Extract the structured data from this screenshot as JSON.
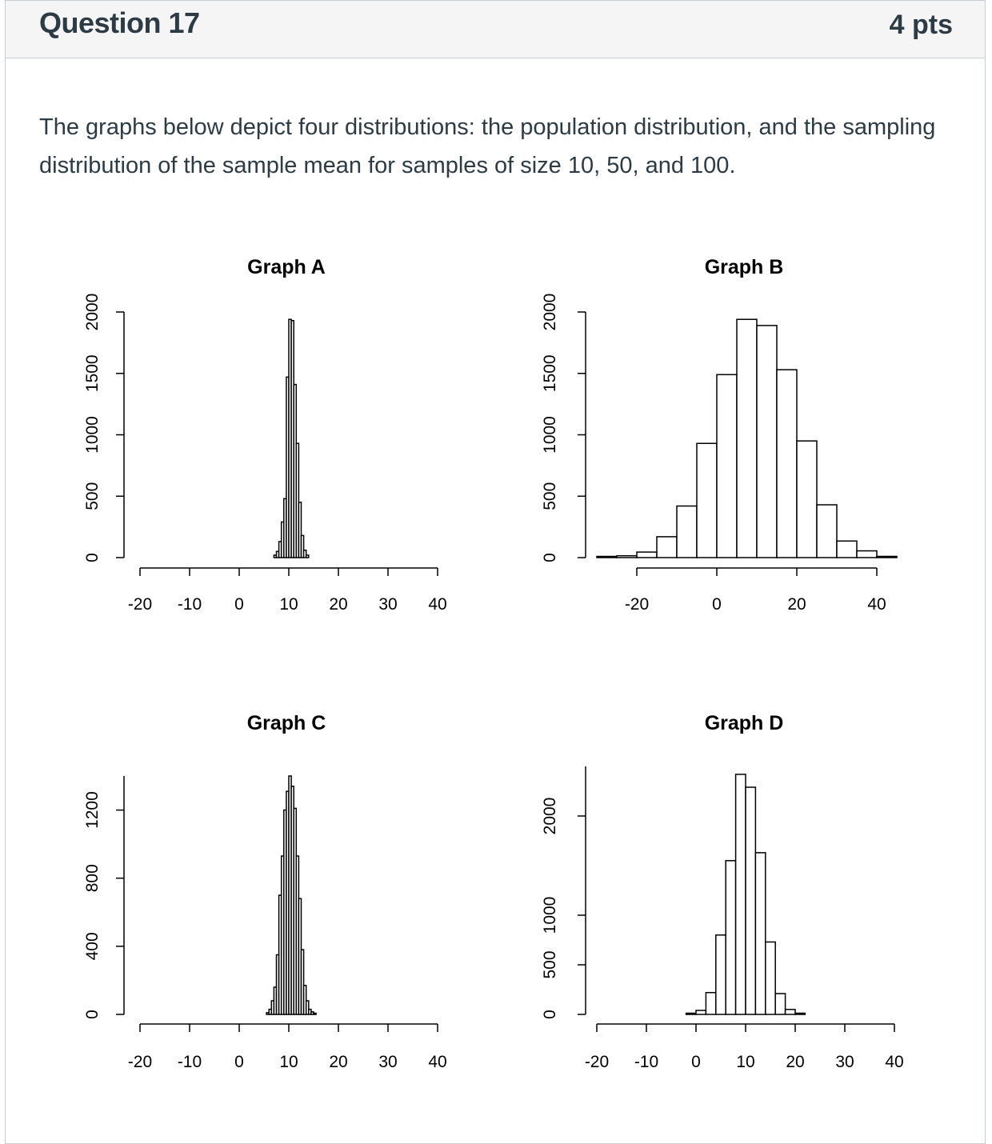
{
  "question": {
    "title": "Question 17",
    "points": "4 pts",
    "text": "The graphs below depict four distributions: the population distribution, and the sampling distribution of the sample mean for samples of size 10, 50, and 100."
  },
  "chart_data": [
    {
      "type": "bar",
      "title": "Graph A",
      "xlabel": "",
      "ylabel": "",
      "xticks": [
        -20,
        -10,
        0,
        10,
        20,
        30,
        40
      ],
      "xlim": [
        -20,
        40
      ],
      "yticks": [
        0,
        500,
        1000,
        1500,
        2000
      ],
      "ylim": [
        0,
        2000
      ],
      "bins": [
        {
          "x0": 7.0,
          "x1": 7.5,
          "y": 20
        },
        {
          "x0": 7.5,
          "x1": 8.0,
          "y": 50
        },
        {
          "x0": 8.0,
          "x1": 8.5,
          "y": 130
        },
        {
          "x0": 8.5,
          "x1": 9.0,
          "y": 290
        },
        {
          "x0": 9.0,
          "x1": 9.5,
          "y": 480
        },
        {
          "x0": 9.5,
          "x1": 10.0,
          "y": 1470
        },
        {
          "x0": 10.0,
          "x1": 10.5,
          "y": 1940
        },
        {
          "x0": 10.5,
          "x1": 11.0,
          "y": 1930
        },
        {
          "x0": 11.0,
          "x1": 11.5,
          "y": 1410
        },
        {
          "x0": 11.5,
          "x1": 12.0,
          "y": 930
        },
        {
          "x0": 12.0,
          "x1": 12.5,
          "y": 450
        },
        {
          "x0": 12.5,
          "x1": 13.0,
          "y": 180
        },
        {
          "x0": 13.0,
          "x1": 13.5,
          "y": 60
        },
        {
          "x0": 13.5,
          "x1": 14.0,
          "y": 20
        }
      ]
    },
    {
      "type": "bar",
      "title": "Graph B",
      "xlabel": "",
      "ylabel": "",
      "xticks": [
        -20,
        0,
        20,
        40
      ],
      "xlim": [
        -20,
        40
      ],
      "yticks": [
        0,
        500,
        1000,
        1500,
        2000
      ],
      "ylim": [
        0,
        2000
      ],
      "bins": [
        {
          "x0": -30,
          "x1": -25,
          "y": 5
        },
        {
          "x0": -25,
          "x1": -20,
          "y": 15
        },
        {
          "x0": -20,
          "x1": -15,
          "y": 45
        },
        {
          "x0": -15,
          "x1": -10,
          "y": 170
        },
        {
          "x0": -10,
          "x1": -5,
          "y": 420
        },
        {
          "x0": -5,
          "x1": 0,
          "y": 930
        },
        {
          "x0": 0,
          "x1": 5,
          "y": 1490
        },
        {
          "x0": 5,
          "x1": 10,
          "y": 1940
        },
        {
          "x0": 10,
          "x1": 15,
          "y": 1890
        },
        {
          "x0": 15,
          "x1": 20,
          "y": 1530
        },
        {
          "x0": 20,
          "x1": 25,
          "y": 950
        },
        {
          "x0": 25,
          "x1": 30,
          "y": 430
        },
        {
          "x0": 30,
          "x1": 35,
          "y": 135
        },
        {
          "x0": 35,
          "x1": 40,
          "y": 55
        },
        {
          "x0": 40,
          "x1": 45,
          "y": 10
        }
      ]
    },
    {
      "type": "bar",
      "title": "Graph C",
      "xlabel": "",
      "ylabel": "",
      "xticks": [
        -20,
        -10,
        0,
        10,
        20,
        30,
        40
      ],
      "xlim": [
        -20,
        40
      ],
      "yticks": [
        0,
        400,
        800,
        1200
      ],
      "ylim": [
        0,
        1400
      ],
      "bins": [
        {
          "x0": 5.5,
          "x1": 6.0,
          "y": 10
        },
        {
          "x0": 6.0,
          "x1": 6.5,
          "y": 30
        },
        {
          "x0": 6.5,
          "x1": 7.0,
          "y": 80
        },
        {
          "x0": 7.0,
          "x1": 7.5,
          "y": 160
        },
        {
          "x0": 7.5,
          "x1": 8.0,
          "y": 350
        },
        {
          "x0": 8.0,
          "x1": 8.5,
          "y": 700
        },
        {
          "x0": 8.5,
          "x1": 9.0,
          "y": 930
        },
        {
          "x0": 9.0,
          "x1": 9.5,
          "y": 1200
        },
        {
          "x0": 9.5,
          "x1": 10.0,
          "y": 1310
        },
        {
          "x0": 10.0,
          "x1": 10.5,
          "y": 1400
        },
        {
          "x0": 10.5,
          "x1": 11.0,
          "y": 1340
        },
        {
          "x0": 11.0,
          "x1": 11.5,
          "y": 1210
        },
        {
          "x0": 11.5,
          "x1": 12.0,
          "y": 930
        },
        {
          "x0": 12.0,
          "x1": 12.5,
          "y": 680
        },
        {
          "x0": 12.5,
          "x1": 13.0,
          "y": 380
        },
        {
          "x0": 13.0,
          "x1": 13.5,
          "y": 170
        },
        {
          "x0": 13.5,
          "x1": 14.0,
          "y": 80
        },
        {
          "x0": 14.0,
          "x1": 14.5,
          "y": 30
        },
        {
          "x0": 14.5,
          "x1": 15.0,
          "y": 15
        },
        {
          "x0": 15.0,
          "x1": 15.5,
          "y": 5
        }
      ]
    },
    {
      "type": "bar",
      "title": "Graph D",
      "xlabel": "",
      "ylabel": "",
      "xticks": [
        -20,
        -10,
        0,
        10,
        20,
        30,
        40
      ],
      "xlim": [
        -20,
        40
      ],
      "yticks": [
        0,
        500,
        1000,
        2000
      ],
      "ylim": [
        0,
        2500
      ],
      "bins": [
        {
          "x0": -2,
          "x1": 0,
          "y": 10
        },
        {
          "x0": 0,
          "x1": 2,
          "y": 40
        },
        {
          "x0": 2,
          "x1": 4,
          "y": 220
        },
        {
          "x0": 4,
          "x1": 6,
          "y": 800
        },
        {
          "x0": 6,
          "x1": 8,
          "y": 1550
        },
        {
          "x0": 8,
          "x1": 10,
          "y": 2420
        },
        {
          "x0": 10,
          "x1": 12,
          "y": 2290
        },
        {
          "x0": 12,
          "x1": 14,
          "y": 1630
        },
        {
          "x0": 14,
          "x1": 16,
          "y": 730
        },
        {
          "x0": 16,
          "x1": 18,
          "y": 210
        },
        {
          "x0": 18,
          "x1": 20,
          "y": 50
        },
        {
          "x0": 20,
          "x1": 22,
          "y": 10
        }
      ]
    }
  ]
}
